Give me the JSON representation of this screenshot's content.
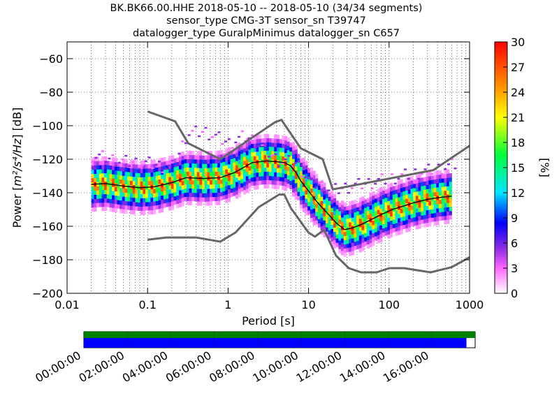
{
  "chart_data": {
    "type": "heatmap",
    "title_lines": [
      "BK.BK66.00.HHE   2018-05-10 -- 2018-05-10  (34/34 segments)",
      "sensor_type CMG-3T sensor_sn T39747",
      "datalogger_type GuralpMinimus datalogger_sn C657"
    ],
    "xlabel": "Period [s]",
    "ylabel_prefix": "Power [",
    "ylabel_unit": "m²/s⁴/Hz",
    "ylabel_suffix": "] [dB]",
    "x_scale": "log",
    "xlim": [
      0.01,
      1000
    ],
    "ylim": [
      -200,
      -50
    ],
    "x_ticks": [
      0.01,
      0.1,
      1,
      10,
      100,
      1000
    ],
    "x_tick_labels": [
      "0.01",
      "0.1",
      "1",
      "10",
      "100",
      "1000"
    ],
    "y_ticks": [
      -200,
      -180,
      -160,
      -140,
      -120,
      -100,
      -80,
      -60
    ],
    "y_tick_labels": [
      "−200",
      "−180",
      "−160",
      "−140",
      "−120",
      "−100",
      "−80",
      "−60"
    ],
    "grid": "dotted",
    "colorbar": {
      "label": "[%]",
      "range": [
        0,
        30
      ],
      "ticks": [
        0,
        3,
        6,
        9,
        12,
        15,
        18,
        21,
        24,
        27,
        30
      ],
      "tick_labels": [
        "0",
        "3",
        "6",
        "9",
        "12",
        "15",
        "18",
        "21",
        "24",
        "27",
        "30"
      ],
      "colormap": "pqlx"
    },
    "series": [
      {
        "role": "new-high-noise-model",
        "color": "#666666",
        "x": [
          0.1,
          0.22,
          0.32,
          0.8,
          3.8,
          4.6,
          8,
          15,
          20,
          354,
          1000
        ],
        "y": [
          -91.5,
          -97.4,
          -110.5,
          -120,
          -98,
          -96.5,
          -113.5,
          -120,
          -138,
          -126.5,
          -112
        ]
      },
      {
        "role": "new-low-noise-model",
        "color": "#666666",
        "x": [
          0.1,
          0.17,
          0.4,
          0.8,
          1.24,
          2.4,
          4.3,
          5,
          6,
          10,
          12,
          15.6,
          21.9,
          31.6,
          45,
          70,
          101,
          154,
          328,
          600,
          1000
        ],
        "y": [
          -168,
          -166.7,
          -166.7,
          -169.2,
          -163.7,
          -148.6,
          -141.1,
          -141.1,
          -149,
          -163.8,
          -166.2,
          -162.1,
          -177.5,
          -185,
          -187.5,
          -187.5,
          -185,
          -185,
          -187.5,
          -184.4,
          -178.5
        ]
      },
      {
        "role": "median-psd",
        "color": "#000000",
        "x": [
          0.02,
          0.03,
          0.05,
          0.08,
          0.12,
          0.2,
          0.3,
          0.5,
          0.8,
          1.2,
          2,
          3,
          4,
          5,
          6,
          7,
          8,
          10,
          13,
          17,
          22,
          28,
          35,
          45,
          60,
          80,
          110,
          150,
          200,
          300,
          400,
          600
        ],
        "y": [
          -135,
          -134.5,
          -136,
          -137,
          -136.5,
          -134,
          -131,
          -131.5,
          -131,
          -128,
          -122,
          -121,
          -121.5,
          -122,
          -124,
          -128,
          -133,
          -139,
          -146,
          -152,
          -158,
          -162,
          -161,
          -159,
          -156,
          -153,
          -150,
          -148,
          -146,
          -144,
          -143,
          -142
        ]
      }
    ],
    "outlier_band": {
      "x": [
        0.02,
        0.05,
        0.1,
        0.2,
        0.3,
        0.5,
        1,
        1.5,
        2,
        4,
        7,
        10,
        20,
        30,
        50,
        100,
        200,
        500,
        700
      ],
      "y": [
        -117,
        -121,
        -122,
        -125,
        -104,
        -103,
        -110,
        -106,
        -108,
        -120,
        -122,
        -133,
        -138,
        -136,
        -134,
        -131,
        -128,
        -124,
        -122
      ]
    },
    "timeline": {
      "tick_labels": [
        "00:00:00",
        "02:00:00",
        "04:00:00",
        "06:00:00",
        "08:00:00",
        "10:00:00",
        "12:00:00",
        "14:00:00",
        "16:00:00"
      ],
      "range_hours": [
        0,
        18
      ],
      "bars": [
        {
          "name": "data-coverage",
          "color": "#008000",
          "start_hour": 0,
          "end_hour": 18
        },
        {
          "name": "segment-coverage",
          "color": "#0000ff",
          "start_hour": 0,
          "end_hour": 17.6
        }
      ]
    }
  }
}
